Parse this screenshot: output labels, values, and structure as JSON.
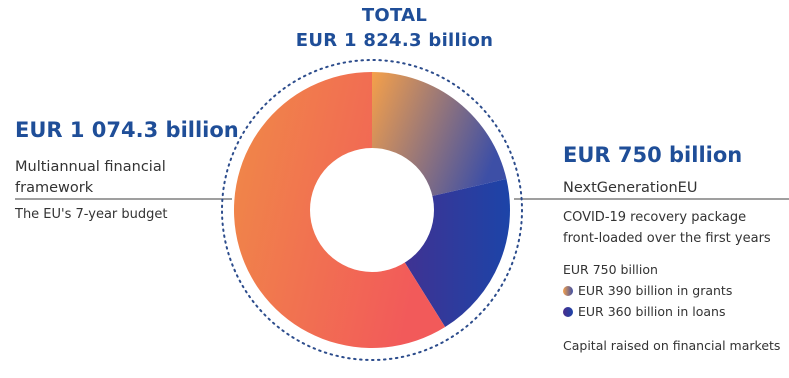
{
  "chart_data": {
    "type": "pie",
    "variant": "donut",
    "title": "TOTAL",
    "total_label": "EUR 1 824.3 billion",
    "categories": [
      "Multiannual financial framework",
      "EUR 390 billion in grants",
      "EUR 360 billion in loans"
    ],
    "values": [
      1074.3,
      390,
      360
    ],
    "colors": {
      "mff_start": "#f08a47",
      "mff_end": "#f25a5a",
      "grants_start": "#f5a04a",
      "grants_end": "#3d4fa6",
      "loans_start": "#4a2d8c",
      "loans_end": "#1c44a8",
      "ring": "#2c4c8c",
      "line": "#666666"
    },
    "left": {
      "amount": "EUR 1 074.3 billion",
      "name": "Multiannual financial framework",
      "description": "The EU's 7-year budget"
    },
    "right": {
      "amount": "EUR 750 billion",
      "name": "NextGenerationEU",
      "description": "COVID-19 recovery package front-loaded over the first years",
      "subtotal": "EUR 750 billion",
      "legend": [
        {
          "label": "EUR 390 billion in grants"
        },
        {
          "label": "EUR 360 billion in loans"
        }
      ],
      "note": "Capital raised on financial markets"
    }
  }
}
